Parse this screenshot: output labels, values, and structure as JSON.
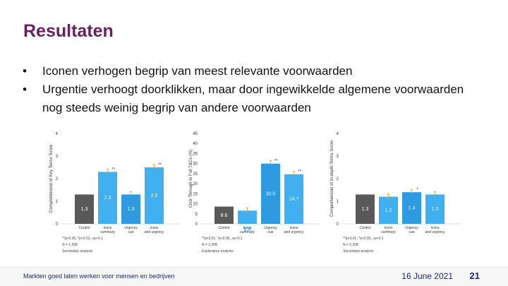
{
  "slide": {
    "title": "Resultaten",
    "bullets": [
      "Iconen verhogen begrip van meest relevante voorwaarden",
      "Urgentie verhoogt doorklikken, maar door ingewikkelde algemene voorwaarden nog steeds weinig begrip van andere voorwaarden"
    ],
    "bullet_symbol": "•"
  },
  "footer": {
    "text": "Markten goed laten werken voor mensen en bedrijven",
    "date": "16 June 2021",
    "page": "21"
  },
  "colors": {
    "control": "#595959",
    "blue_dark": "#2e9be0",
    "blue_light": "#40b0f0",
    "title": "#6a1f5e",
    "footer_text": "#1e2a6e"
  },
  "chart_data": [
    {
      "type": "bar",
      "ylabel": "Comprehension of Key Terms Score",
      "ylim": [
        0,
        4
      ],
      "yticks": [
        "0",
        "1",
        "2",
        "3",
        "4"
      ],
      "categories": [
        "Control",
        "Icons summary",
        "Urgency cue",
        "Icons and urgency"
      ],
      "values": [
        1.3,
        2.3,
        1.3,
        2.5
      ],
      "data_labels": [
        "1.3",
        "2.3",
        "1.3",
        "2.5"
      ],
      "significance": [
        "",
        "**",
        "",
        "**"
      ],
      "notes": [
        "**p<0.00, *p<0.01, +p<0.1",
        "N = 2,208",
        "Secondary analysis"
      ]
    },
    {
      "type": "bar",
      "ylabel": "Click Through to Full T&Cs (%)",
      "ylim": [
        0,
        45
      ],
      "yticks": [
        "0",
        "5",
        "10",
        "15",
        "20",
        "25",
        "30",
        "35",
        "40",
        "45"
      ],
      "categories": [
        "Control",
        "Icons summary",
        "Urgency cue",
        "Icons and urgency"
      ],
      "values": [
        8.6,
        6.6,
        30.0,
        24.7
      ],
      "data_labels": [
        "8.6",
        "6.6",
        "30.0",
        "24.7"
      ],
      "significance": [
        "",
        "",
        "**",
        "**"
      ],
      "notes": [
        "**p<0.01, *p<0.05, +p<0.1",
        "N = 2,208",
        "Exploratory analysis"
      ]
    },
    {
      "type": "bar",
      "ylabel": "Comprehension of In-depth Terms Score",
      "ylim": [
        0,
        4
      ],
      "yticks": [
        "0",
        "1",
        "2",
        "3",
        "4"
      ],
      "categories": [
        "Control",
        "Icons summary",
        "Urgency cue",
        "Icons and urgency"
      ],
      "values": [
        1.3,
        1.2,
        1.4,
        1.3
      ],
      "data_labels": [
        "1.3",
        "1.2",
        "1.4",
        "1.3"
      ],
      "significance": [
        "",
        "",
        "*",
        ""
      ],
      "notes": [
        "**p<0.01, *p<0.05, +p<0.1",
        "N = 2,208",
        "Secondary analysis"
      ]
    }
  ]
}
